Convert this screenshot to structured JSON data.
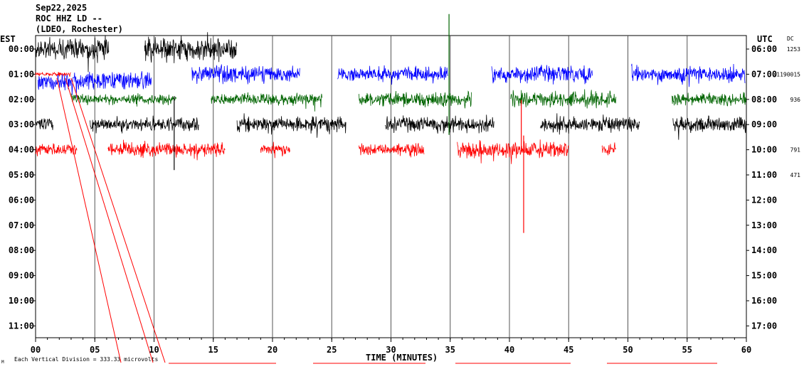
{
  "header": {
    "date": "Sep22,2025",
    "station": "ROC HHZ LD --",
    "network": "(LDEO, Rochester)"
  },
  "left_axis_title": "EST",
  "right_axis_title": "UTC",
  "dc_label": "DC",
  "footer_note": "Each Vertical Division =  333.33 microvolts",
  "corner_mark": "M",
  "chart_data": {
    "type": "line",
    "title": "",
    "xlabel": "TIME (MINUTES)",
    "xlim": [
      0,
      60
    ],
    "x_ticks": [
      "00",
      "05",
      "10",
      "15",
      "20",
      "25",
      "30",
      "35",
      "40",
      "45",
      "50",
      "55",
      "60"
    ],
    "row_labels_left": [
      "00:00",
      "01:00",
      "02:00",
      "03:00",
      "04:00",
      "05:00",
      "06:00",
      "07:00",
      "08:00",
      "09:00",
      "10:00",
      "11:00"
    ],
    "row_labels_right": [
      "06:00",
      "07:00",
      "08:00",
      "09:00",
      "10:00",
      "11:00",
      "12:00",
      "13:00",
      "14:00",
      "15:00",
      "16:00",
      "17:00"
    ],
    "dc_offsets": [
      {
        "row": 0,
        "value": "1253"
      },
      {
        "row": 1,
        "value": "-1190015"
      },
      {
        "row": 2,
        "value": "936"
      },
      {
        "row": 4,
        "value": "791"
      },
      {
        "row": 5,
        "value": "471"
      }
    ],
    "trace_colors": [
      "#000000",
      "#ff0000",
      "#0000ff",
      "#006400"
    ],
    "series": [
      {
        "row": 0,
        "color": "#000000",
        "segments": [
          [
            0,
            6.2,
            22
          ],
          [
            9.2,
            17,
            22
          ]
        ]
      },
      {
        "row": 1,
        "color": "#ff0000",
        "segments": [
          [
            0,
            3,
            4
          ]
        ]
      },
      {
        "row": 1.25,
        "color": "#0000ff",
        "segments": [
          [
            0.2,
            9.8,
            18
          ]
        ]
      },
      {
        "row": 1,
        "color": "#0000ff",
        "segments": [
          [
            13.2,
            22.3,
            17
          ],
          [
            25.5,
            34.8,
            14
          ],
          [
            38.5,
            47,
            17
          ],
          [
            50.3,
            59.9,
            16
          ]
        ]
      },
      {
        "row": 2,
        "color": "#006400",
        "segments": [
          [
            3,
            11.9,
            10
          ],
          [
            14.8,
            24.2,
            12
          ],
          [
            27.3,
            36.8,
            15
          ],
          [
            40.1,
            49,
            15
          ],
          [
            53.7,
            60,
            12
          ]
        ]
      },
      {
        "row": 3,
        "color": "#000000",
        "segments": [
          [
            0,
            1.5,
            14
          ],
          [
            4.6,
            13.8,
            14
          ],
          [
            17,
            26.2,
            15
          ],
          [
            29.5,
            38.7,
            15
          ],
          [
            42.6,
            51,
            14
          ],
          [
            53.8,
            60,
            15
          ]
        ]
      },
      {
        "row": 4,
        "color": "#ff0000",
        "segments": [
          [
            0,
            3.5,
            12
          ],
          [
            6.1,
            16,
            14
          ],
          [
            19,
            21.5,
            11
          ],
          [
            27.3,
            32.8,
            12
          ],
          [
            35.6,
            45,
            16
          ],
          [
            47.8,
            49,
            12
          ]
        ]
      }
    ],
    "spikes": [
      {
        "minute": 34.9,
        "row": 2,
        "up": 120,
        "down": 50,
        "color": "#006400"
      },
      {
        "minute": 11.7,
        "row": 3,
        "up": 40,
        "down": 64,
        "color": "#000000"
      },
      {
        "minute": 41.2,
        "row": 4,
        "up": 20,
        "down": 117,
        "color": "#ff0000"
      },
      {
        "minute": 41,
        "row": 4,
        "up": 70,
        "down": 0,
        "color": "#ff0000"
      }
    ],
    "grid": true
  }
}
